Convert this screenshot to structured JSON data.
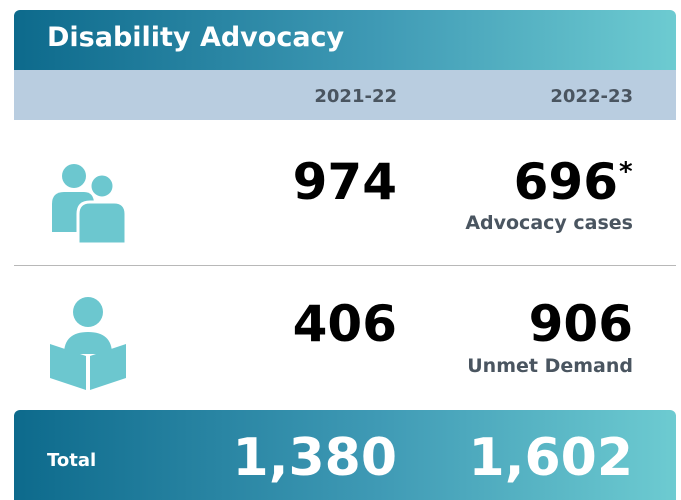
{
  "header": {
    "title": "Disability Advocacy"
  },
  "columns": [
    "2021-22",
    "2022-23"
  ],
  "rows": [
    {
      "values": [
        "974",
        "696"
      ],
      "footnote": "*",
      "label": "Advocacy cases"
    },
    {
      "values": [
        "406",
        "906"
      ],
      "label": "Unmet Demand"
    }
  ],
  "total": {
    "label": "Total",
    "values": [
      "1,380",
      "1,602"
    ]
  }
}
